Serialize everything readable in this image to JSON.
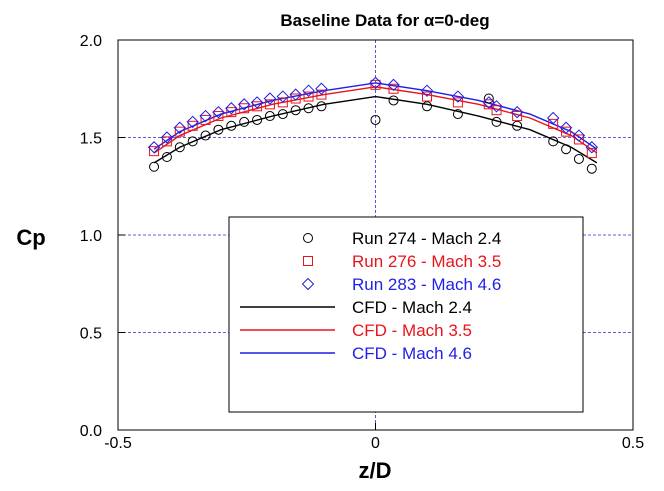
{
  "chart_data": {
    "type": "scatter",
    "title": "Baseline Data for α=0-deg",
    "xlabel": "z/D",
    "ylabel": "Cp",
    "xlim": [
      -0.5,
      0.5
    ],
    "ylim": [
      0.0,
      2.0
    ],
    "x_ticks": [
      "-0.5",
      "0",
      "0.5"
    ],
    "y_ticks": [
      "0.0",
      "0.5",
      "1.0",
      "1.5",
      "2.0"
    ],
    "grid": true,
    "legend_position": "lower-right",
    "series": [
      {
        "name": "Run 274 - Mach 2.4",
        "kind": "markers",
        "marker": "circle",
        "color": "#000000",
        "x": [
          -0.43,
          -0.405,
          -0.38,
          -0.355,
          -0.33,
          -0.305,
          -0.28,
          -0.255,
          -0.23,
          -0.205,
          -0.18,
          -0.155,
          -0.13,
          -0.105,
          0.0,
          0.035,
          0.1,
          0.16,
          0.22,
          0.235,
          0.275,
          0.345,
          0.37,
          0.395,
          0.42
        ],
        "y": [
          1.35,
          1.4,
          1.45,
          1.48,
          1.51,
          1.54,
          1.56,
          1.58,
          1.59,
          1.61,
          1.62,
          1.64,
          1.65,
          1.66,
          1.59,
          1.69,
          1.66,
          1.62,
          1.7,
          1.58,
          1.56,
          1.48,
          1.44,
          1.39,
          1.34
        ]
      },
      {
        "name": "Run 276 - Mach 3.5",
        "kind": "markers",
        "marker": "square",
        "color": "#e8141c",
        "x": [
          -0.43,
          -0.405,
          -0.38,
          -0.355,
          -0.33,
          -0.305,
          -0.28,
          -0.255,
          -0.23,
          -0.205,
          -0.18,
          -0.155,
          -0.13,
          -0.105,
          0.0,
          0.035,
          0.1,
          0.16,
          0.22,
          0.235,
          0.275,
          0.345,
          0.37,
          0.395,
          0.42
        ],
        "y": [
          1.43,
          1.48,
          1.53,
          1.56,
          1.59,
          1.61,
          1.63,
          1.65,
          1.66,
          1.67,
          1.68,
          1.7,
          1.71,
          1.72,
          1.77,
          1.75,
          1.71,
          1.68,
          1.67,
          1.64,
          1.61,
          1.57,
          1.53,
          1.49,
          1.42
        ]
      },
      {
        "name": "Run 283 - Mach 4.6",
        "kind": "markers",
        "marker": "diamond",
        "color": "#1f1fe6",
        "x": [
          -0.43,
          -0.405,
          -0.38,
          -0.355,
          -0.33,
          -0.305,
          -0.28,
          -0.255,
          -0.23,
          -0.205,
          -0.18,
          -0.155,
          -0.13,
          -0.105,
          0.0,
          0.035,
          0.1,
          0.16,
          0.22,
          0.235,
          0.275,
          0.345,
          0.37,
          0.395,
          0.42
        ],
        "y": [
          1.45,
          1.5,
          1.55,
          1.58,
          1.61,
          1.63,
          1.65,
          1.67,
          1.68,
          1.7,
          1.71,
          1.72,
          1.74,
          1.75,
          1.78,
          1.77,
          1.74,
          1.71,
          1.68,
          1.66,
          1.63,
          1.6,
          1.55,
          1.51,
          1.45
        ]
      },
      {
        "name": "CFD - Mach 2.4",
        "kind": "line",
        "color": "#000000",
        "x": [
          -0.43,
          -0.38,
          -0.3,
          -0.2,
          -0.1,
          0.0,
          0.1,
          0.2,
          0.3,
          0.38,
          0.43
        ],
        "y": [
          1.37,
          1.45,
          1.54,
          1.61,
          1.67,
          1.71,
          1.67,
          1.61,
          1.54,
          1.45,
          1.37
        ]
      },
      {
        "name": "CFD - Mach 3.5",
        "kind": "line",
        "color": "#e8141c",
        "x": [
          -0.43,
          -0.38,
          -0.3,
          -0.2,
          -0.1,
          0.0,
          0.1,
          0.2,
          0.3,
          0.38,
          0.43
        ],
        "y": [
          1.42,
          1.51,
          1.6,
          1.67,
          1.72,
          1.76,
          1.72,
          1.67,
          1.6,
          1.51,
          1.42
        ]
      },
      {
        "name": "CFD - Mach 4.6",
        "kind": "line",
        "color": "#1f1fe6",
        "x": [
          -0.43,
          -0.38,
          -0.3,
          -0.2,
          -0.1,
          0.0,
          0.1,
          0.2,
          0.3,
          0.38,
          0.43
        ],
        "y": [
          1.44,
          1.53,
          1.62,
          1.69,
          1.74,
          1.78,
          1.74,
          1.69,
          1.62,
          1.53,
          1.44
        ]
      }
    ]
  }
}
